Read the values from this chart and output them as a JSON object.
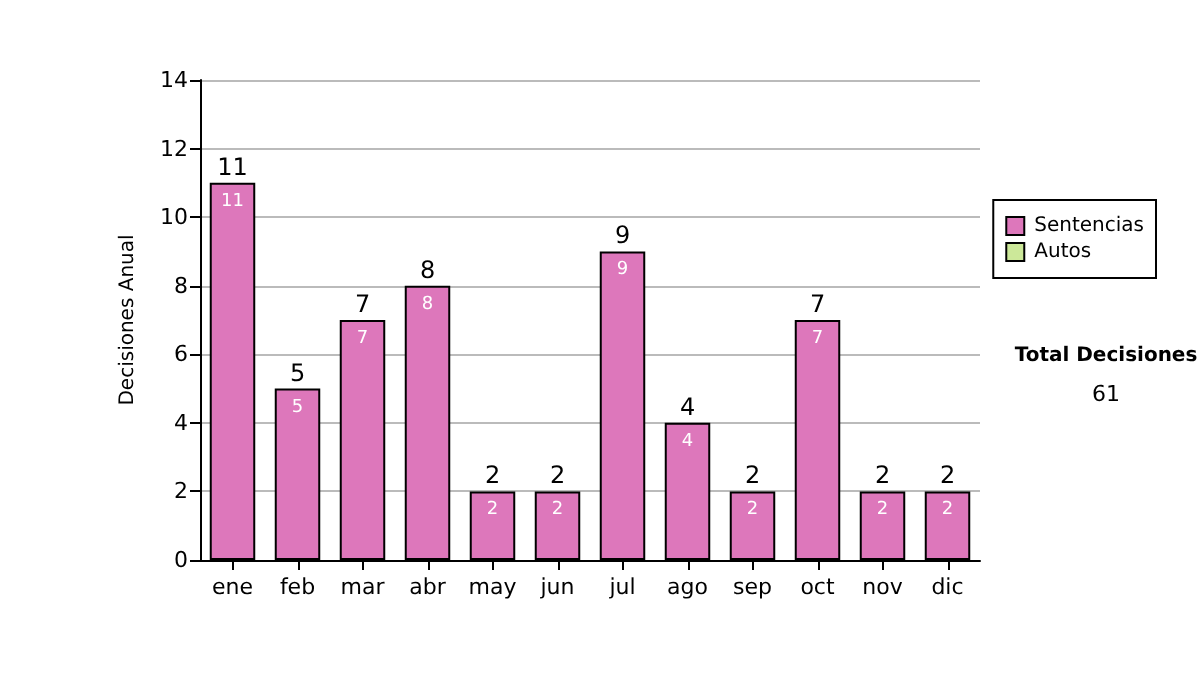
{
  "chart_data": {
    "type": "bar",
    "stacked": true,
    "ylabel": "Decisiones Anual",
    "categories": [
      "ene",
      "feb",
      "mar",
      "abr",
      "may",
      "jun",
      "jul",
      "ago",
      "sep",
      "oct",
      "nov",
      "dic"
    ],
    "series": [
      {
        "name": "Sentencias",
        "color": "#dd77bb",
        "values": [
          11,
          5,
          7,
          8,
          2,
          2,
          9,
          4,
          2,
          7,
          2,
          2
        ]
      },
      {
        "name": "Autos",
        "color": "#cce899",
        "values": [
          null,
          null,
          null,
          null,
          null,
          null,
          null,
          null,
          null,
          null,
          null,
          null
        ]
      }
    ],
    "totals": [
      "11",
      "5",
      "7",
      "8",
      "2",
      "2",
      "9",
      "4",
      "2",
      "7",
      "2",
      "2"
    ],
    "data_labels": true,
    "ylim": [
      0,
      14
    ],
    "yticks": [
      0,
      2,
      4,
      6,
      8,
      10,
      12,
      14
    ],
    "grid": "y",
    "legend": "right",
    "annotations": [
      "Total Decisiones",
      "61"
    ]
  }
}
